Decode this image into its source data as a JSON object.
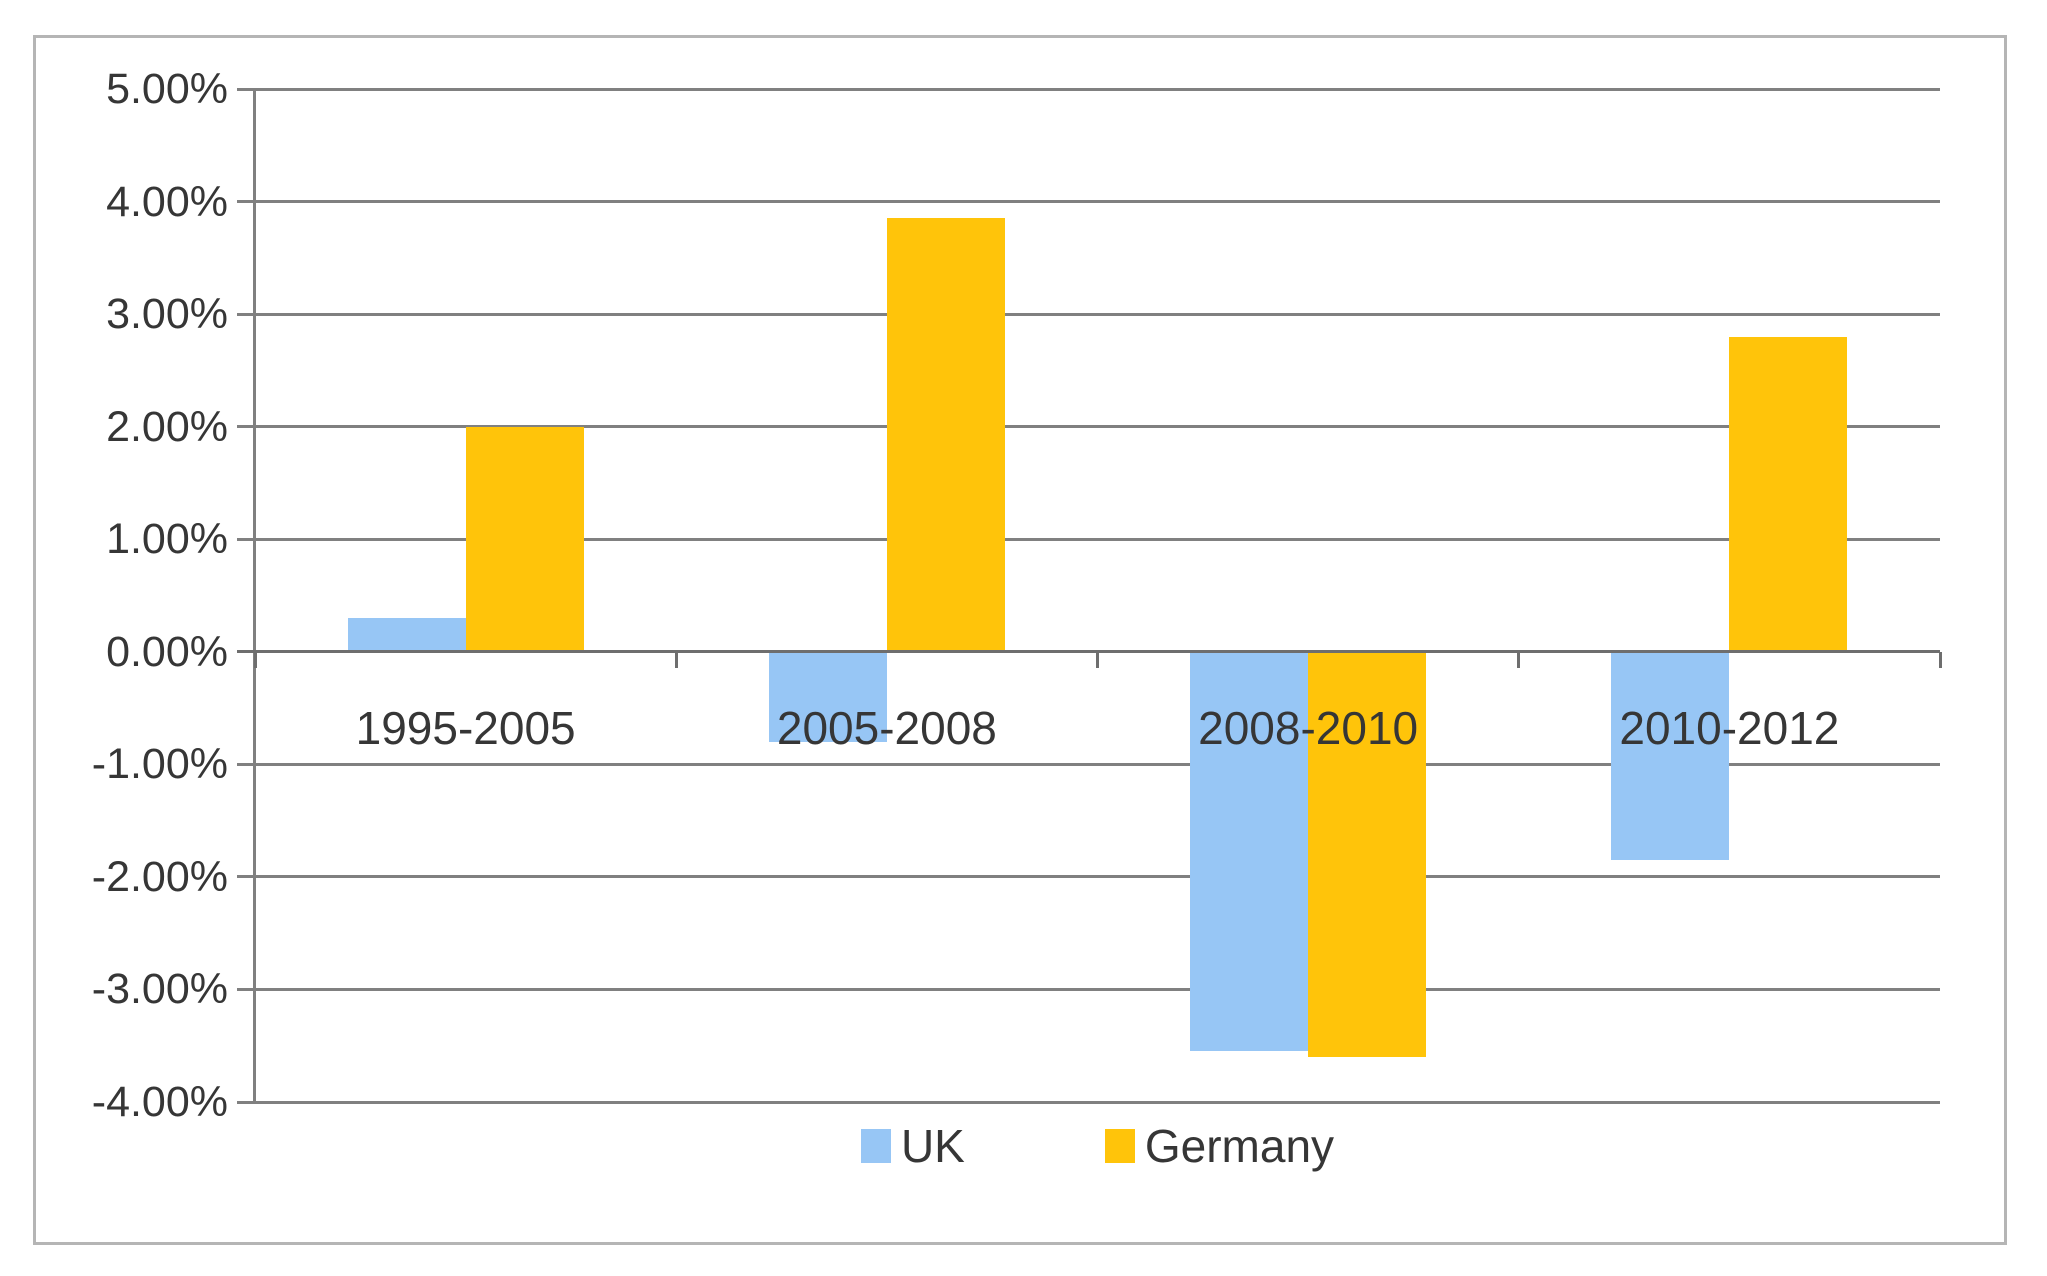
{
  "figure": {
    "background": "#FFFFFF",
    "border_color": "#B5B5B5"
  },
  "colors": {
    "grid": "#808080",
    "axis": "#6E6E6E",
    "text": "#363636",
    "uk_blue": "#97C6F5",
    "germany_gold": "#FFC40A"
  },
  "chart_data": {
    "type": "bar",
    "title": "",
    "xlabel": "",
    "ylabel": "",
    "categories": [
      "1995-2005",
      "2005-2008",
      "2008-2010",
      "2010-2012"
    ],
    "series": [
      {
        "name": "UK",
        "color": "#97C6F5",
        "values": [
          0.3,
          -0.8,
          -3.55,
          -1.85
        ]
      },
      {
        "name": "Germany",
        "color": "#FFC40A",
        "values": [
          2.0,
          3.85,
          -3.6,
          2.8
        ]
      }
    ],
    "ylim": [
      -4,
      5
    ],
    "ytick_step": 1,
    "ytick_labels": [
      "5.00%",
      "4.00%",
      "3.00%",
      "2.00%",
      "1.00%",
      "0.00%",
      "-1.00%",
      "-2.00%",
      "-3.00%",
      "-4.00%"
    ],
    "grid": true,
    "legend_position": "bottom"
  }
}
